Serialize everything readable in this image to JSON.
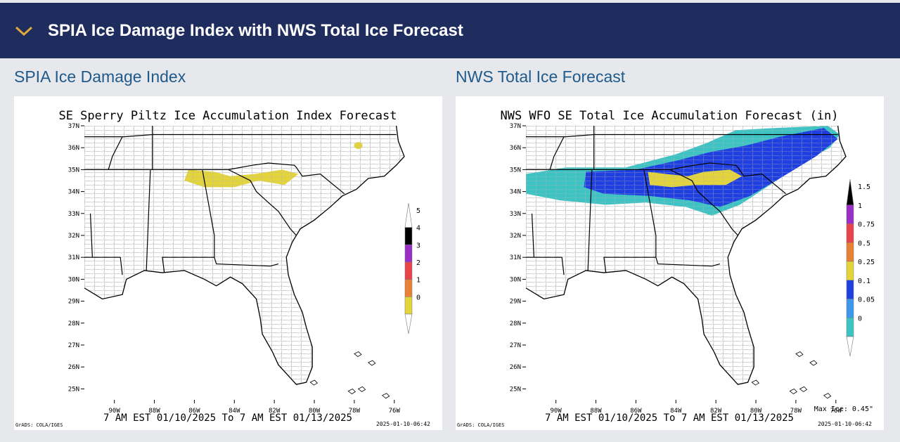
{
  "header": {
    "title": "SPIA Ice Damage Index with NWS Total Ice Forecast",
    "collapse_icon": "chevron-down-icon"
  },
  "panels": [
    {
      "heading": "SPIA Ice Damage Index",
      "map_title": "SE Sperry Piltz Ice Accumulation Index Forecast",
      "period": "7 AM EST 01/10/2025 To 7 AM EST 01/13/2025",
      "credit": "GrADS: COLA/IGES",
      "timestamp": "2025-01-10-06:42",
      "max_note": "",
      "legend": [
        {
          "label": "5",
          "color": "#ffffff"
        },
        {
          "label": "4",
          "color": "#000000"
        },
        {
          "label": "3",
          "color": "#9a2fc7"
        },
        {
          "label": "2",
          "color": "#e8424a"
        },
        {
          "label": "1",
          "color": "#e98035"
        },
        {
          "label": "0",
          "color": "#e3d43c"
        }
      ]
    },
    {
      "heading": "NWS Total Ice Forecast",
      "map_title": "NWS WFO SE Total Ice Accumulation Forecast (in)",
      "period": "7 AM EST 01/10/2025 To 7 AM EST 01/13/2025",
      "credit": "GrADS: COLA/IGES",
      "timestamp": "2025-01-10-06:42",
      "max_note": "Max Ice: 0.45\"",
      "legend": [
        {
          "label": "1.5",
          "color": "#000000"
        },
        {
          "label": "1",
          "color": "#9a2fc7"
        },
        {
          "label": "0.75",
          "color": "#e8424a"
        },
        {
          "label": "0.5",
          "color": "#e98035"
        },
        {
          "label": "0.25",
          "color": "#e3d43c"
        },
        {
          "label": "0.1",
          "color": "#1f3fe0"
        },
        {
          "label": "0.05",
          "color": "#3d97ea"
        },
        {
          "label": "0",
          "color": "#3dc3c3"
        }
      ]
    }
  ],
  "lat_labels": [
    "37N",
    "36N",
    "35N",
    "34N",
    "33N",
    "32N",
    "31N",
    "30N",
    "29N",
    "28N",
    "27N",
    "26N",
    "25N"
  ],
  "lon_labels": [
    "90W",
    "88W",
    "86W",
    "84W",
    "82W",
    "80W",
    "78W",
    "76W"
  ]
}
